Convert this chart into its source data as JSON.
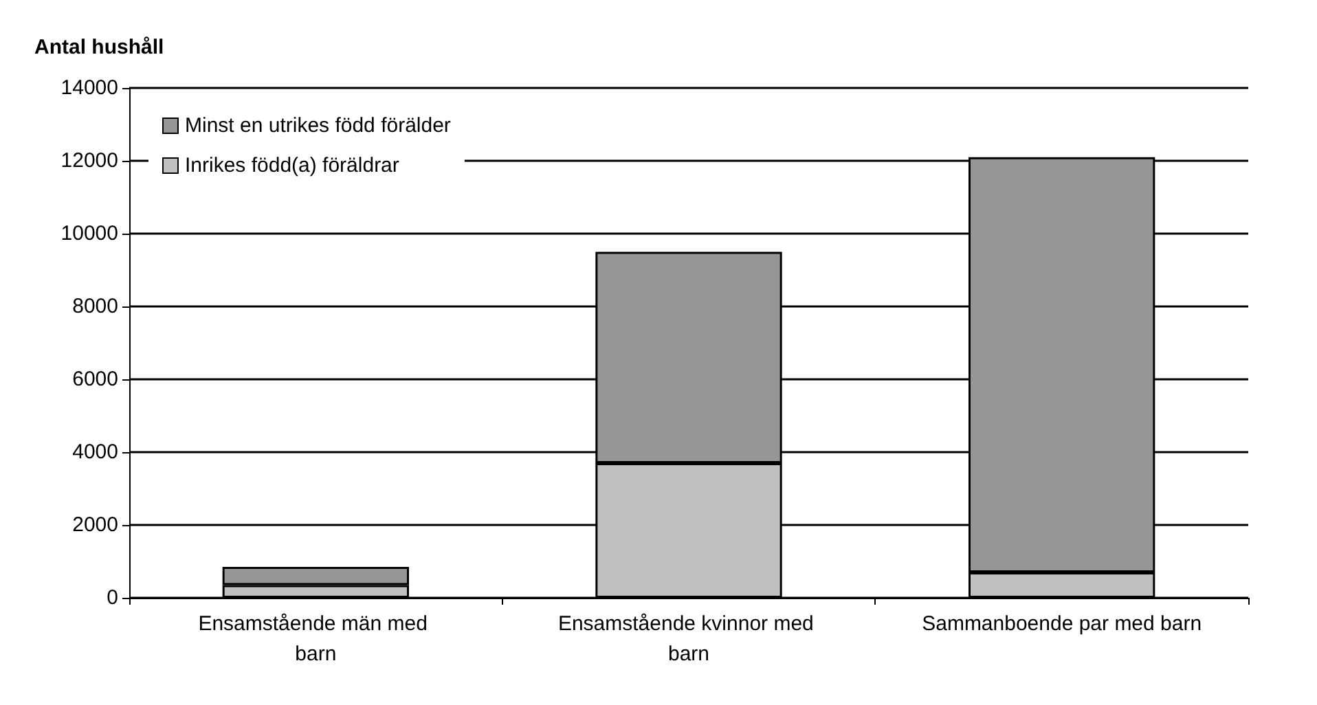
{
  "chart_data": {
    "type": "bar",
    "ylabel": "Antal hushåll",
    "stacked": true,
    "categories": [
      "Ensamstående män med barn",
      "Ensamstående kvinnor med barn",
      "Sammanboende par med barn"
    ],
    "series": [
      {
        "name": "Inrikes född(a) föräldrar",
        "color": "#c0c0c0",
        "values": [
          350,
          3700,
          700
        ]
      },
      {
        "name": "Minst en utrikes född förälder",
        "color": "#969696",
        "values": [
          500,
          5800,
          11400
        ]
      }
    ],
    "ylim": [
      0,
      14000
    ],
    "yticks": [
      0,
      2000,
      4000,
      6000,
      8000,
      10000,
      12000,
      14000
    ],
    "grid": "y",
    "legend": "top left"
  }
}
